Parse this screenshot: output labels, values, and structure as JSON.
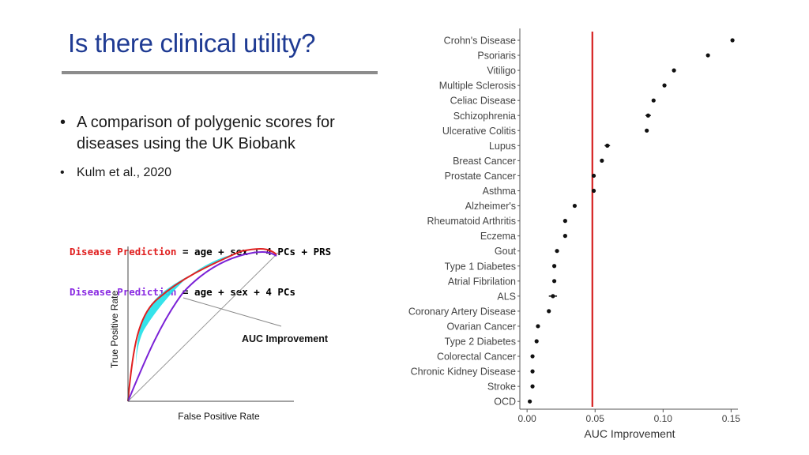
{
  "slide": {
    "title": "Is there clinical utility?",
    "bullets": [
      "A comparison of polygenic scores for diseases using the UK Biobank",
      "Kulm et al., 2020"
    ]
  },
  "roc_figure": {
    "formula_1": {
      "left": "Disease Prediction",
      "right": "= age + sex + 4 PCs + PRS",
      "color": "#e02020"
    },
    "formula_2": {
      "left": "Disease Prediction",
      "right": "= age + sex + 4 PCs",
      "color": "#8a2be2"
    },
    "x_label": "False Positive Rate",
    "y_label": "True Positive Rate",
    "annotation": "AUC Improvement",
    "colors": {
      "prs_curve": "#e02020",
      "base_curve": "#7b22d6",
      "improvement_fill": "#1fe0e8"
    }
  },
  "chart_data": {
    "type": "scatter",
    "orientation": "horizontal",
    "title": "",
    "xlabel": "AUC Improvement",
    "ylabel": "",
    "xlim": [
      -0.003,
      0.155
    ],
    "xticks": [
      0.0,
      0.05,
      0.1,
      0.15
    ],
    "xtick_labels": [
      "0.00",
      "0.05",
      "0.10",
      "0.15"
    ],
    "reference_line": {
      "x": 0.048,
      "color": "#d62020"
    },
    "grid": false,
    "legend": "none",
    "categories": [
      "Crohn's Disease",
      "Psoriaris",
      "Vitiligo",
      "Multiple Sclerosis",
      "Celiac Disease",
      "Schizophrenia",
      "Ulcerative Colitis",
      "Lupus",
      "Breast Cancer",
      "Prostate Cancer",
      "Asthma",
      "Alzheimer's",
      "Rheumatoid Arthritis",
      "Eczema",
      "Gout",
      "Type 1 Diabetes",
      "Atrial Fibrilation",
      "ALS",
      "Coronary Artery Disease",
      "Ovarian Cancer",
      "Type 2 Diabetes",
      "Colorectal Cancer",
      "Chronic Kidney Disease",
      "Stroke",
      "OCD"
    ],
    "values": [
      0.151,
      0.133,
      0.108,
      0.101,
      0.093,
      0.089,
      0.088,
      0.059,
      0.055,
      0.049,
      0.049,
      0.035,
      0.028,
      0.028,
      0.022,
      0.02,
      0.02,
      0.019,
      0.016,
      0.008,
      0.007,
      0.004,
      0.004,
      0.004,
      0.002
    ],
    "error_half_width": [
      0,
      0,
      0,
      0,
      0,
      0.002,
      0,
      0.002,
      0,
      0,
      0,
      0,
      0,
      0,
      0,
      0,
      0,
      0.003,
      0,
      0,
      0,
      0,
      0,
      0,
      0
    ]
  }
}
